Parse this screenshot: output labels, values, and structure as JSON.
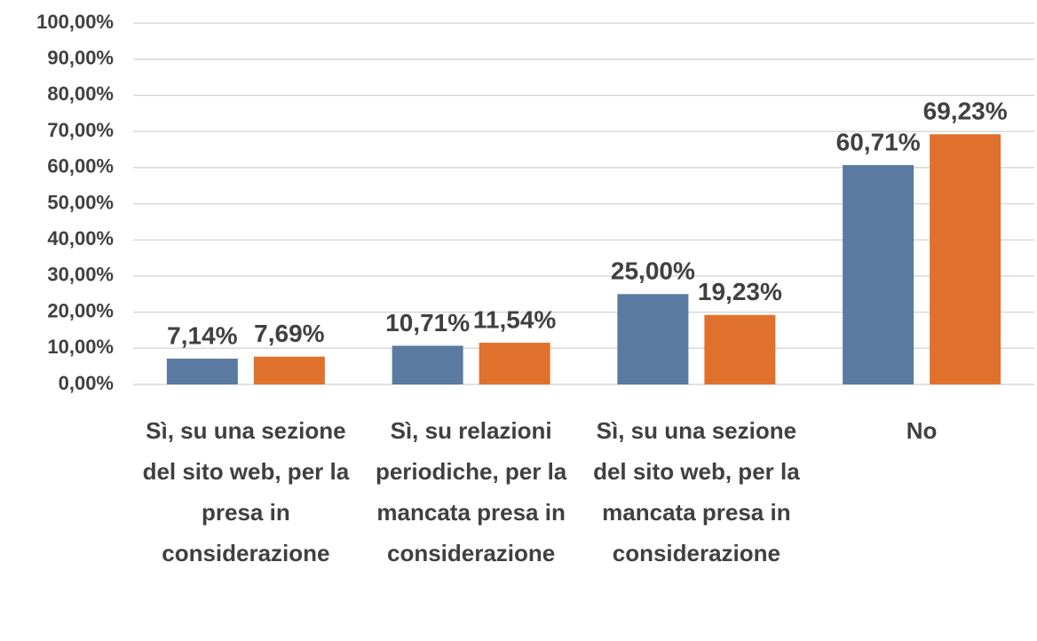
{
  "chart_data": {
    "type": "bar",
    "categories": [
      "Sì, su una sezione del sito web, per la presa in considerazione",
      "Sì, su relazioni periodiche, per la mancata presa in considerazione",
      "Sì, su una sezione del sito web, per la mancata presa in considerazione",
      "No"
    ],
    "series": [
      {
        "color": "#5b7aa1",
        "values": [
          7.14,
          10.71,
          25,
          60.71
        ],
        "value_labels": [
          "7,14%",
          "10,71%",
          "25,00%",
          "60,71%"
        ]
      },
      {
        "color": "#e0712c",
        "values": [
          7.69,
          11.54,
          19.23,
          69.23
        ],
        "value_labels": [
          "7,69%",
          "11,54%",
          "19,23%",
          "69,23%"
        ]
      }
    ],
    "ylim": [
      0,
      100
    ],
    "yticks": [
      {
        "value": 0,
        "label": "0,00%"
      },
      {
        "value": 10,
        "label": "10,00%"
      },
      {
        "value": 20,
        "label": "20,00%"
      },
      {
        "value": 30,
        "label": "30,00%"
      },
      {
        "value": 40,
        "label": "40,00%"
      },
      {
        "value": 50,
        "label": "50,00%"
      },
      {
        "value": 60,
        "label": "60,00%"
      },
      {
        "value": 70,
        "label": "70,00%"
      },
      {
        "value": 80,
        "label": "80,00%"
      },
      {
        "value": 90,
        "label": "90,00%"
      },
      {
        "value": 100,
        "label": "100,00%"
      }
    ],
    "grid": true
  }
}
